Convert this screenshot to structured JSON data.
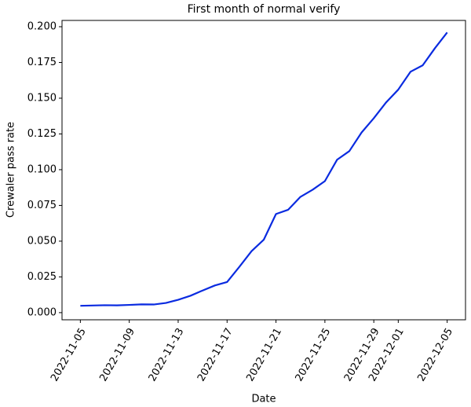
{
  "chart_data": {
    "type": "line",
    "title": "First month of normal verify",
    "x_label": "Date",
    "y_label": "Crewaler pass rate",
    "x": [
      "2022-11-05",
      "2022-11-06",
      "2022-11-07",
      "2022-11-08",
      "2022-11-09",
      "2022-11-10",
      "2022-11-11",
      "2022-11-12",
      "2022-11-13",
      "2022-11-14",
      "2022-11-15",
      "2022-11-16",
      "2022-11-17",
      "2022-11-18",
      "2022-11-19",
      "2022-11-20",
      "2022-11-21",
      "2022-11-22",
      "2022-11-23",
      "2022-11-24",
      "2022-11-25",
      "2022-11-26",
      "2022-11-27",
      "2022-11-28",
      "2022-11-29",
      "2022-11-30",
      "2022-12-01",
      "2022-12-02",
      "2022-12-03",
      "2022-12-04",
      "2022-12-05"
    ],
    "series": [
      {
        "color": "#0a2be0",
        "values": [
          0.0048,
          0.005,
          0.0052,
          0.0051,
          0.0054,
          0.0058,
          0.0057,
          0.0068,
          0.009,
          0.0118,
          0.0155,
          0.019,
          0.0214,
          0.032,
          0.043,
          0.051,
          0.069,
          0.072,
          0.081,
          0.086,
          0.092,
          0.107,
          0.113,
          0.126,
          0.136,
          0.147,
          0.156,
          0.1685,
          0.173,
          0.185,
          0.196
        ]
      }
    ],
    "xlim": [
      "2022-11-03T12:00:00Z",
      "2022-12-06T12:00:00Z"
    ],
    "xticks": [
      "2022-11-05",
      "2022-11-09",
      "2022-11-13",
      "2022-11-17",
      "2022-11-21",
      "2022-11-25",
      "2022-11-29",
      "2022-12-01",
      "2022-12-05"
    ],
    "ylim": [
      -0.005,
      0.2044
    ],
    "yticks": [
      {
        "value": 0,
        "label": "0.000"
      },
      0.025,
      {
        "value": 0.05,
        "label": "0.050"
      },
      0.075,
      {
        "value": 0.1,
        "label": "0.100"
      },
      0.125,
      {
        "value": 0.15,
        "label": "0.150"
      },
      0.175,
      {
        "value": 0.2,
        "label": "0.200"
      }
    ]
  }
}
